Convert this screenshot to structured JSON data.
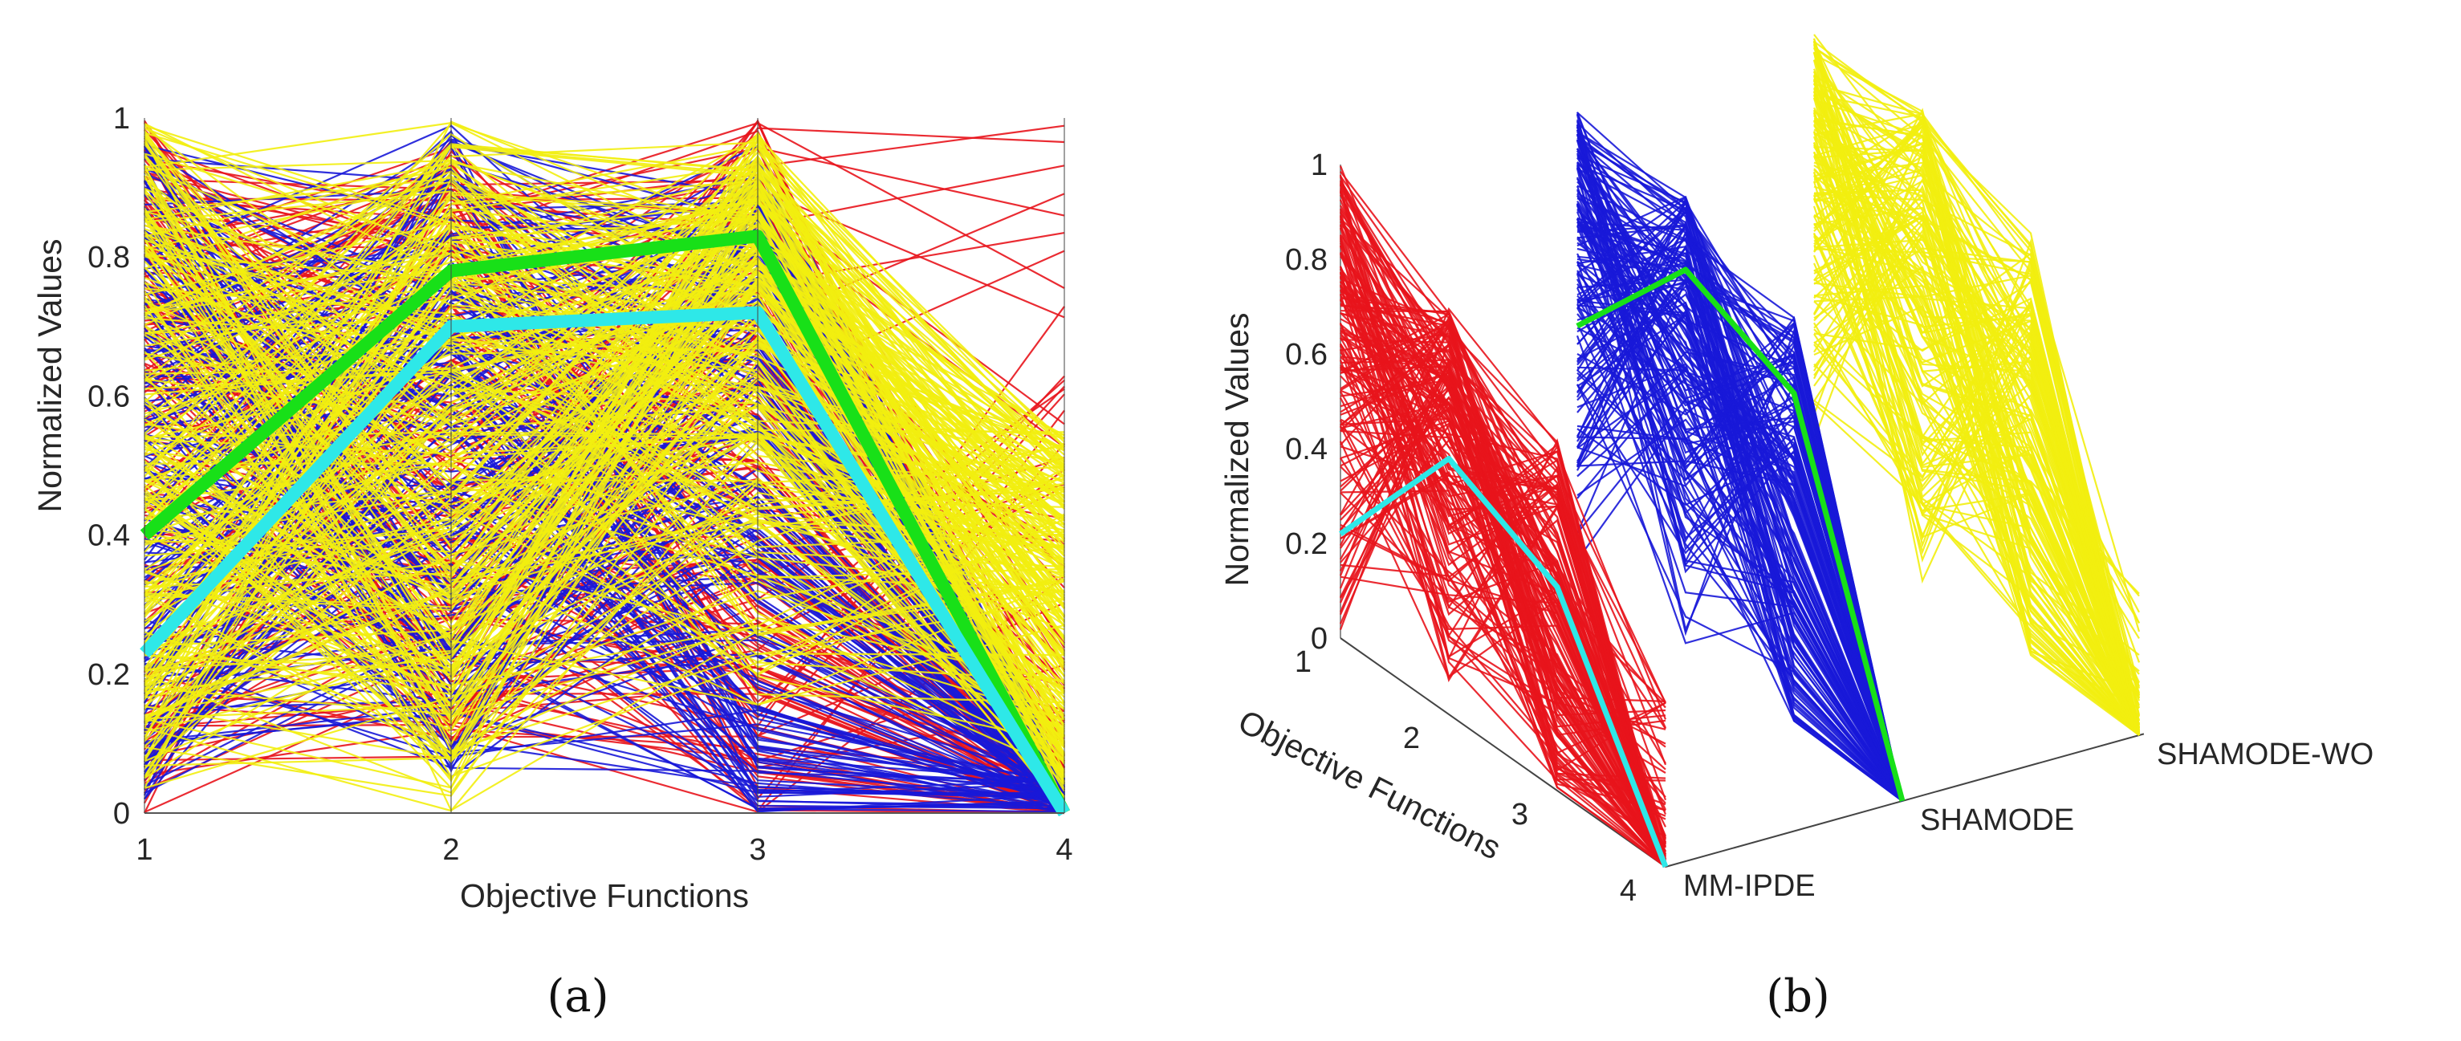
{
  "captions": {
    "a": "(a)",
    "b": "(b)"
  },
  "palette": {
    "MM-IPDE": "#e8141c",
    "SHAMODE": "#1818d8",
    "SHAMODE-WO": "#f2ee10",
    "best_SHAMODE": "#18e018",
    "best_MM-IPDE": "#2ee8e8"
  },
  "chart_data": [
    {
      "id": "a",
      "type": "line",
      "subtype": "parallel-coordinates",
      "title": "",
      "xlabel": "Objective Functions",
      "ylabel": "Normalized Values",
      "x": [
        1,
        2,
        3,
        4
      ],
      "x_ticks": [
        "1",
        "2",
        "3",
        "4"
      ],
      "y_ticks": [
        "0",
        "0.2",
        "0.4",
        "0.6",
        "0.8",
        "1"
      ],
      "ylim": [
        0,
        1
      ],
      "grid": false,
      "legend": "none",
      "draw_order": [
        "MM-IPDE",
        "SHAMODE",
        "SHAMODE-WO"
      ],
      "series_bundles": [
        {
          "group": "MM-IPDE",
          "color": "#e8141c",
          "count": 180,
          "envelope_min": [
            0.0,
            0.08,
            0.0,
            0.0
          ],
          "envelope_max": [
            1.0,
            0.98,
            1.0,
            1.0
          ]
        },
        {
          "group": "SHAMODE",
          "color": "#1818d8",
          "count": 180,
          "envelope_min": [
            0.02,
            0.05,
            0.0,
            0.0
          ],
          "envelope_max": [
            0.98,
            1.0,
            0.96,
            0.05
          ]
        },
        {
          "group": "SHAMODE-WO",
          "color": "#f2ee10",
          "count": 260,
          "envelope_min": [
            0.03,
            0.0,
            0.15,
            0.0
          ],
          "envelope_max": [
            1.0,
            1.0,
            0.98,
            0.55
          ]
        }
      ],
      "highlight_series": [
        {
          "group": "SHAMODE",
          "color": "#18e018",
          "values": [
            0.4,
            0.78,
            0.83,
            0.0
          ]
        },
        {
          "group": "MM-IPDE",
          "color": "#2ee8e8",
          "values": [
            0.23,
            0.7,
            0.72,
            0.0
          ]
        }
      ]
    },
    {
      "id": "b",
      "type": "line",
      "subtype": "3d-parallel-coordinates",
      "title": "",
      "xlabel": "Objective Functions",
      "ylabel": "Normalized Values",
      "x": [
        1,
        2,
        3,
        4
      ],
      "x_ticks": [
        "1",
        "2",
        "3",
        "4"
      ],
      "y_ticks": [
        "0",
        "0.2",
        "0.4",
        "0.6",
        "0.8",
        "1"
      ],
      "ylim": [
        0,
        1
      ],
      "depth_labels": [
        "MM-IPDE",
        "SHAMODE",
        "SHAMODE-WO"
      ],
      "grid": false,
      "legend": "none",
      "slices": [
        {
          "name": "MM-IPDE",
          "color": "#e8141c",
          "count": 170,
          "envelope_min": [
            0.0,
            0.0,
            0.0,
            0.0
          ],
          "envelope_max": [
            1.0,
            0.86,
            0.74,
            0.35
          ],
          "highlight": {
            "color": "#2ee8e8",
            "values": [
              0.22,
              0.54,
              0.43,
              0.0
            ]
          }
        },
        {
          "name": "SHAMODE",
          "color": "#1818d8",
          "count": 170,
          "envelope_min": [
            0.0,
            0.0,
            0.0,
            0.0
          ],
          "envelope_max": [
            0.98,
            0.96,
            0.86,
            0.0
          ],
          "highlight": {
            "color": "#18e018",
            "values": [
              0.52,
              0.8,
              0.7,
              0.0
            ]
          }
        },
        {
          "name": "SHAMODE-WO",
          "color": "#f2ee10",
          "count": 170,
          "envelope_min": [
            0.1,
            0.0,
            0.0,
            0.0
          ],
          "envelope_max": [
            1.0,
            1.0,
            0.9,
            0.32
          ],
          "highlight": null
        }
      ]
    }
  ]
}
